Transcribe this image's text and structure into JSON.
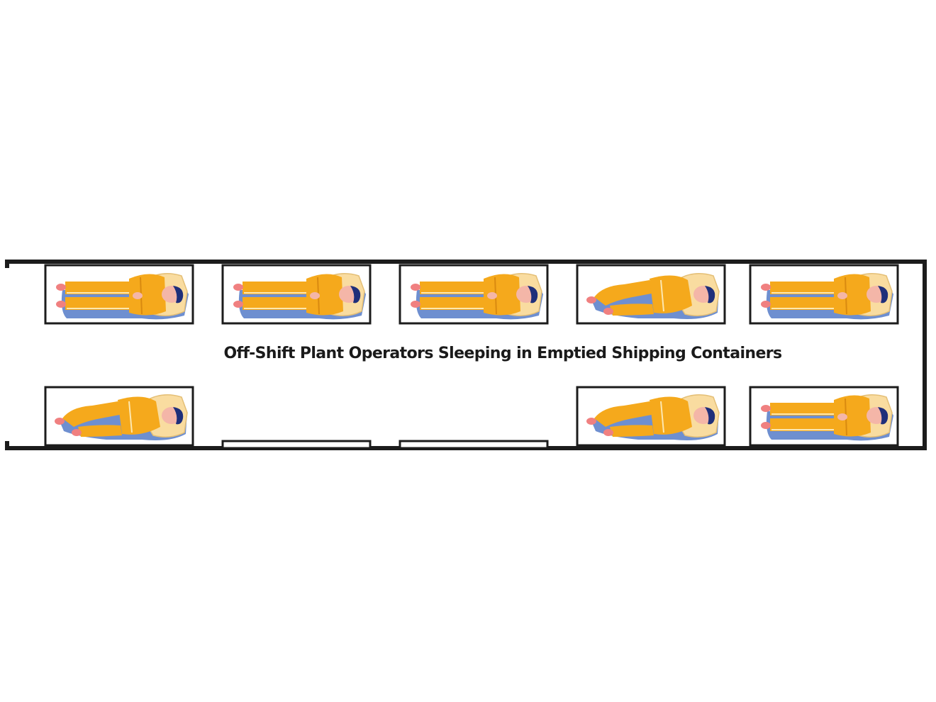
{
  "diagram": {
    "title": "Off-Shift Plant Operators Sleeping in Emptied Shipping Containers",
    "colors": {
      "outline": "#1c1c1c",
      "suit": "#f5a91c",
      "suit_stripe": "#fde7b0",
      "suit_shade": "#d98a10",
      "pillow": "#f9dca0",
      "shadow": "#6e8fd0",
      "skin": "#f4b6a8",
      "feet": "#f08080",
      "hair": "#1f2f7a"
    },
    "top_row": [
      {
        "occupied": true,
        "pose": "back-head-right"
      },
      {
        "occupied": true,
        "pose": "side-head-right"
      },
      {
        "occupied": true,
        "pose": "back-head-right"
      },
      {
        "occupied": true,
        "pose": "curled-head-right"
      },
      {
        "occupied": true,
        "pose": "side-head-right"
      }
    ],
    "bottom_row": [
      {
        "occupied": true,
        "pose": "curled-head-right"
      },
      {
        "occupied": false,
        "pose": ""
      },
      {
        "occupied": false,
        "pose": ""
      },
      {
        "occupied": true,
        "pose": "curled-head-right"
      },
      {
        "occupied": true,
        "pose": "back-head-right"
      }
    ]
  }
}
